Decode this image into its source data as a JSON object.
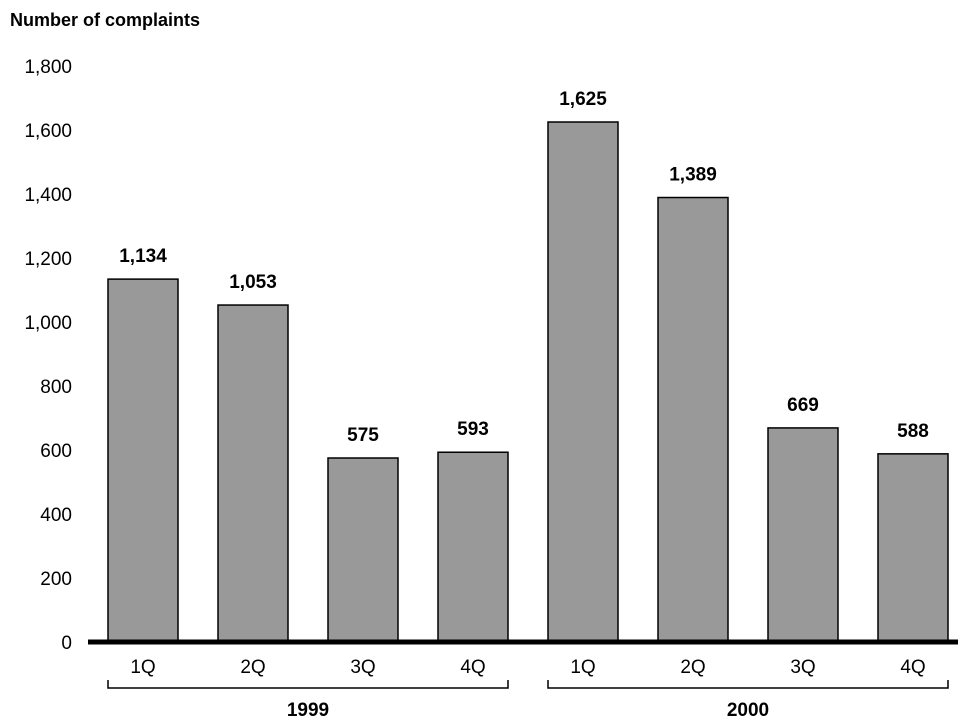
{
  "chart_data": {
    "type": "bar",
    "ylabel": "Number of complaints",
    "ylim": [
      0,
      1800
    ],
    "yticks": [
      0,
      200,
      400,
      600,
      800,
      1000,
      1200,
      1400,
      1600,
      1800
    ],
    "ytick_labels": [
      "0",
      "200",
      "400",
      "600",
      "800",
      "1,000",
      "1,200",
      "1,400",
      "1,600",
      "1,800"
    ],
    "categories": [
      "1Q",
      "2Q",
      "3Q",
      "4Q",
      "1Q",
      "2Q",
      "3Q",
      "4Q"
    ],
    "values": [
      1134,
      1053,
      575,
      593,
      1625,
      1389,
      669,
      588
    ],
    "value_labels": [
      "1,134",
      "1,053",
      "575",
      "593",
      "1,625",
      "1,389",
      "669",
      "588"
    ],
    "groups": [
      {
        "label": "1999",
        "start": 0,
        "end": 3
      },
      {
        "label": "2000",
        "start": 4,
        "end": 7
      }
    ],
    "bar_color": "#999999",
    "grid": false,
    "legend": "none"
  }
}
